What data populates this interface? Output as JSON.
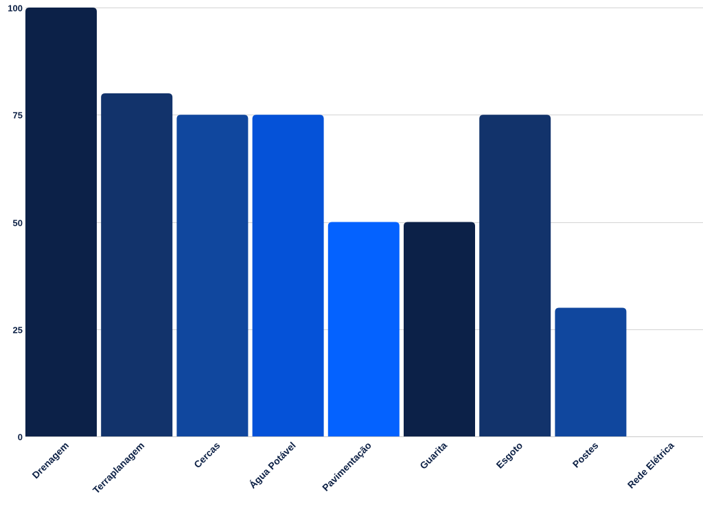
{
  "chart_data": {
    "type": "bar",
    "title": "",
    "xlabel": "",
    "ylabel": "",
    "categories": [
      "Drenagem",
      "Terraplanagem",
      "Cercas",
      "Água Potável",
      "Pavimentação",
      "Guarita",
      "Esgoto",
      "Postes",
      "Rede Elétrica"
    ],
    "values": [
      100,
      80,
      75,
      75,
      50,
      50,
      75,
      30,
      0
    ],
    "bar_colors": [
      "#0c2148",
      "#12336b",
      "#10479e",
      "#0552d8",
      "#0462ff",
      "#0c2148",
      "#12336b",
      "#10479e",
      "#0552d8"
    ],
    "ylim": [
      0,
      100
    ],
    "y_ticks": [
      0,
      25,
      50,
      75,
      100
    ],
    "y_tick_labels": [
      "0",
      "25",
      "50",
      "75",
      "100"
    ],
    "grid": true,
    "legend": "none"
  }
}
